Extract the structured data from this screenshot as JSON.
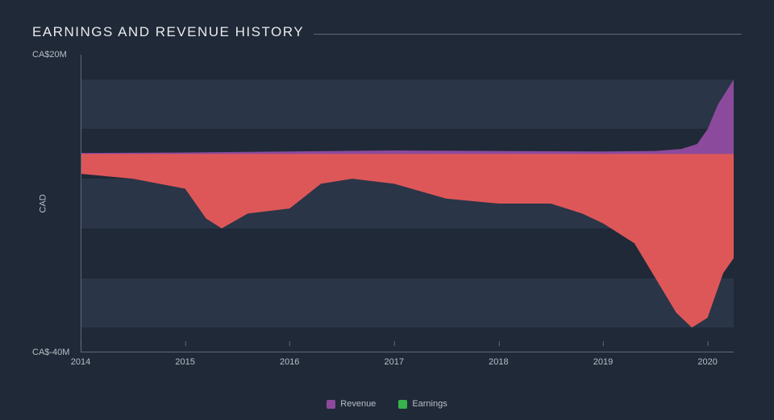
{
  "chart": {
    "type": "area",
    "title": "EARNINGS AND REVENUE HISTORY",
    "background_color": "#1f2937",
    "band_color": "#2a3547",
    "grid_color": "#616977",
    "text_color": "#b9bec7",
    "title_color": "#e8eaed",
    "title_fontsize": 17,
    "label_fontsize": 11,
    "y_axis": {
      "title": "CAD",
      "top_label": "CA$20M",
      "bottom_label": "CA$-40M",
      "ylim": [
        -40,
        20
      ],
      "zero_y_frac": 0.3333,
      "bands": [
        {
          "top_frac": 0.085,
          "bottom_frac": 0.25
        },
        {
          "top_frac": 0.415,
          "bottom_frac": 0.585
        },
        {
          "top_frac": 0.75,
          "bottom_frac": 0.915
        }
      ]
    },
    "x_axis": {
      "xlim": [
        2014,
        2020.25
      ],
      "ticks": [
        2014,
        2015,
        2016,
        2017,
        2018,
        2019,
        2020
      ]
    },
    "series": {
      "revenue": {
        "label": "Revenue",
        "color": "#8b4a9c",
        "fill_opacity": 1.0,
        "x": [
          2014,
          2015,
          2016,
          2017,
          2018,
          2019,
          2019.5,
          2019.75,
          2019.9,
          2020,
          2020.1,
          2020.25
        ],
        "y": [
          0.2,
          0.3,
          0.5,
          0.7,
          0.6,
          0.5,
          0.6,
          1.0,
          2.0,
          5.0,
          10.0,
          15.0
        ]
      },
      "earnings": {
        "label": "Earnings",
        "legend_color": "#38b24a",
        "fill_color": "#e85a5a",
        "fill_opacity": 0.95,
        "x": [
          2014,
          2014.5,
          2015,
          2015.2,
          2015.35,
          2015.6,
          2016,
          2016.3,
          2016.6,
          2017,
          2017.5,
          2018,
          2018.5,
          2018.8,
          2019,
          2019.3,
          2019.5,
          2019.7,
          2019.85,
          2020,
          2020.15,
          2020.25
        ],
        "y": [
          -4,
          -5,
          -7,
          -13,
          -15,
          -12,
          -11,
          -6,
          -5,
          -6,
          -9,
          -10,
          -10,
          -12,
          -14,
          -18,
          -25,
          -32,
          -35,
          -33,
          -24,
          -21
        ]
      }
    },
    "legend_position": "bottom-center"
  }
}
